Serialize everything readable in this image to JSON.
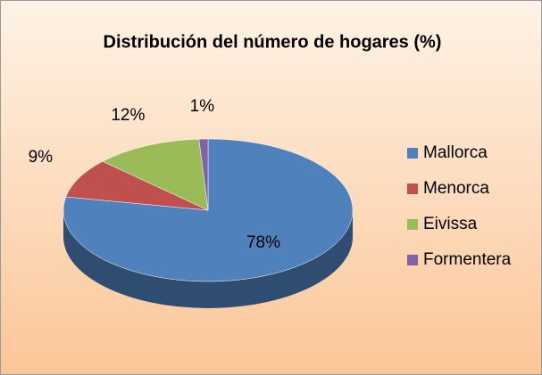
{
  "chart_data": {
    "type": "pie3d",
    "title": "Distribución del número de hogares (%)",
    "categories": [
      "Mallorca",
      "Menorca",
      "Eivissa",
      "Formentera"
    ],
    "values": [
      78,
      9,
      12,
      1
    ],
    "value_labels": [
      "78%",
      "9%",
      "12%",
      "1%"
    ],
    "colors": [
      "#4f81bd",
      "#c0504d",
      "#9bbb59",
      "#8064a2"
    ],
    "legend": "right"
  }
}
